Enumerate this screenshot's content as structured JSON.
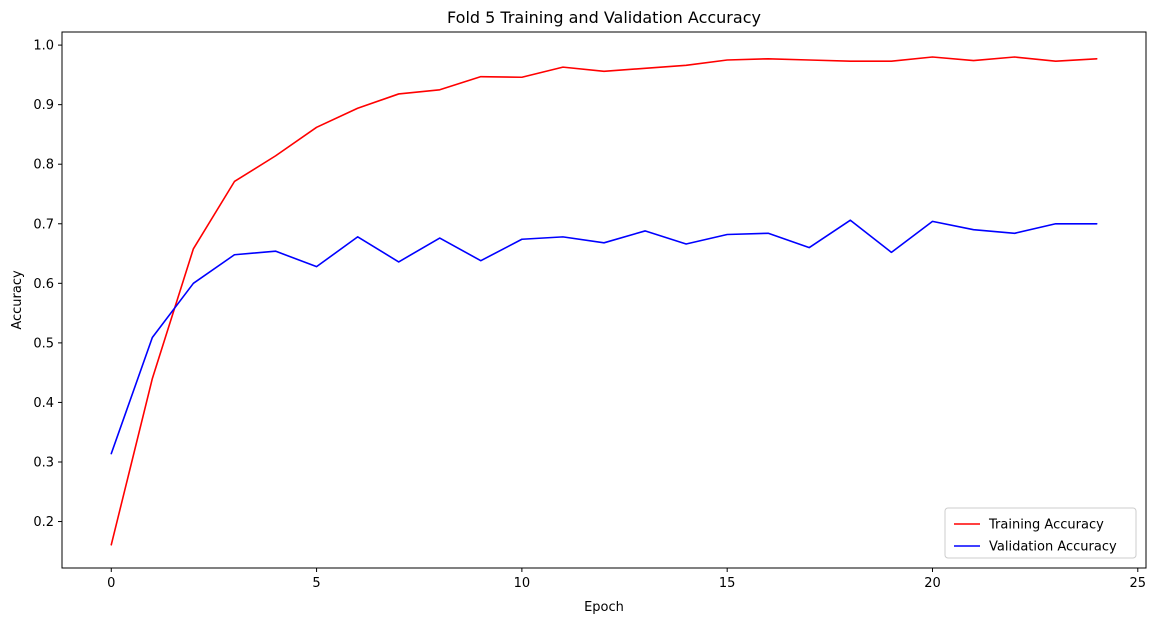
{
  "chart_data": {
    "type": "line",
    "title": "Fold 5 Training and Validation Accuracy",
    "xlabel": "Epoch",
    "ylabel": "Accuracy",
    "xlim": [
      -1.2,
      25.2
    ],
    "ylim": [
      0.122,
      1.022
    ],
    "xticks": [
      0,
      5,
      10,
      15,
      20,
      25
    ],
    "yticks": [
      0.2,
      0.3,
      0.4,
      0.5,
      0.6,
      0.7,
      0.8,
      0.9,
      1.0
    ],
    "ytick_labels": [
      "0.2",
      "0.3",
      "0.4",
      "0.5",
      "0.6",
      "0.7",
      "0.8",
      "0.9",
      "1.0"
    ],
    "legend_position": "bottom-right",
    "grid": false,
    "x": [
      0,
      1,
      2,
      3,
      4,
      5,
      6,
      7,
      8,
      9,
      10,
      11,
      12,
      13,
      14,
      15,
      16,
      17,
      18,
      19,
      20,
      21,
      22,
      23,
      24
    ],
    "series": [
      {
        "name": "Training Accuracy",
        "color": "#ff0000",
        "values": [
          0.161,
          0.44,
          0.658,
          0.771,
          0.814,
          0.862,
          0.894,
          0.918,
          0.925,
          0.947,
          0.946,
          0.963,
          0.956,
          0.961,
          0.966,
          0.975,
          0.977,
          0.975,
          0.973,
          0.973,
          0.98,
          0.974,
          0.98,
          0.973,
          0.977
        ]
      },
      {
        "name": "Validation Accuracy",
        "color": "#0000ff",
        "values": [
          0.314,
          0.509,
          0.6,
          0.648,
          0.654,
          0.628,
          0.678,
          0.636,
          0.676,
          0.638,
          0.674,
          0.678,
          0.668,
          0.688,
          0.666,
          0.682,
          0.684,
          0.66,
          0.706,
          0.652,
          0.704,
          0.69,
          0.684,
          0.7,
          0.7
        ]
      }
    ]
  }
}
